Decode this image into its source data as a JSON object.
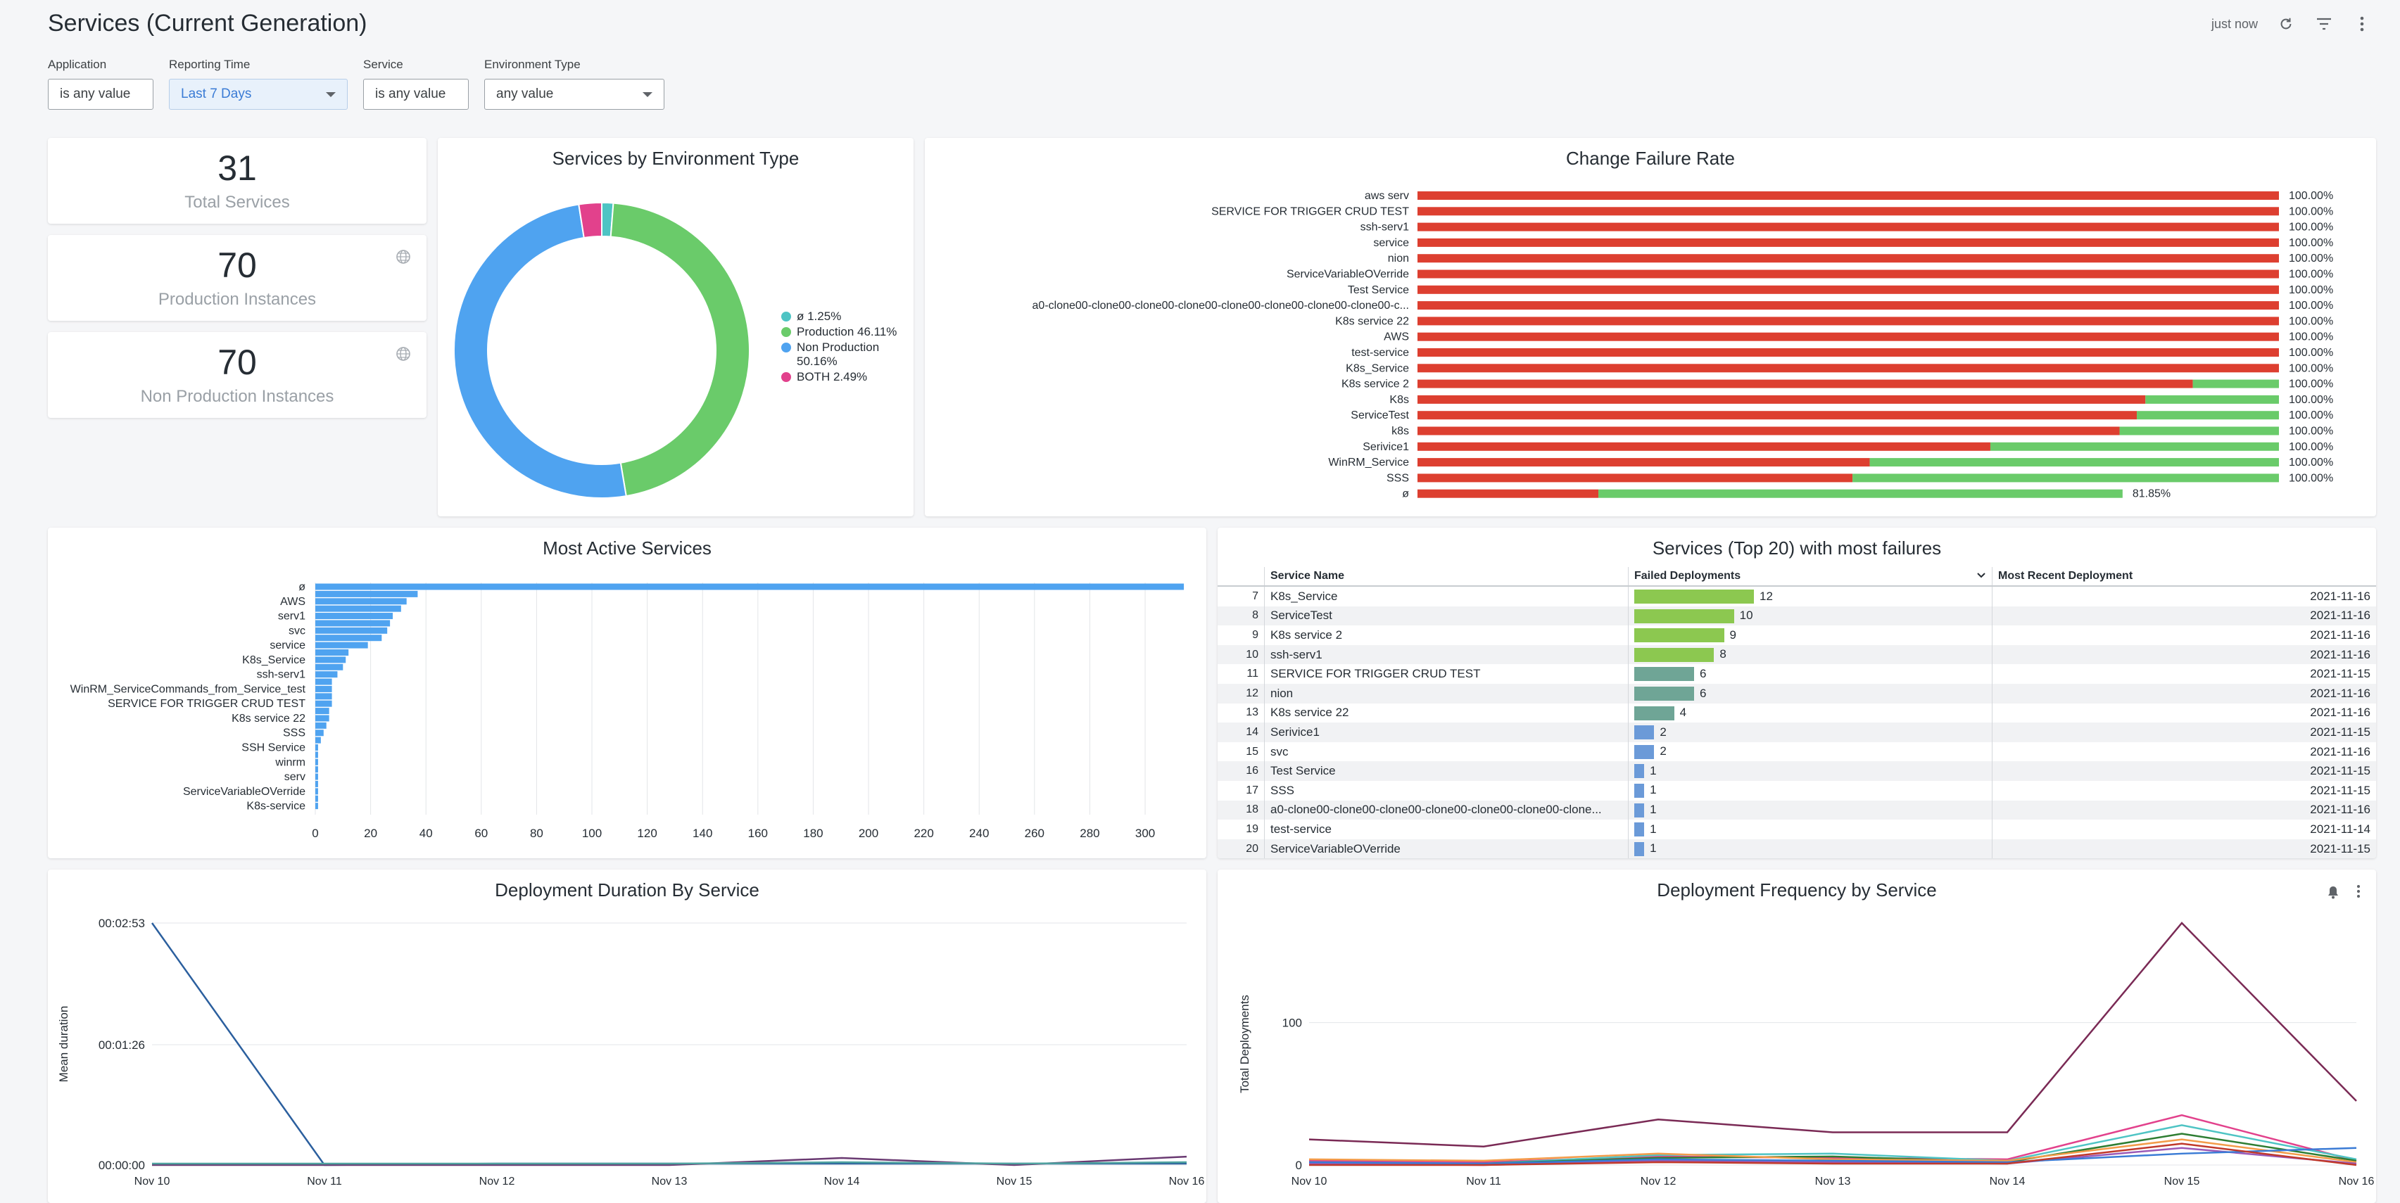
{
  "page": {
    "title": "Services (Current Generation)",
    "refresh_status": "just now"
  },
  "filters": [
    {
      "label": "Application",
      "value": "is any value"
    },
    {
      "label": "Reporting Time",
      "value": "Last 7 Days"
    },
    {
      "label": "Service",
      "value": "is any value"
    },
    {
      "label": "Environment Type",
      "value": "any value"
    }
  ],
  "kpis": [
    {
      "value": "31",
      "label": "Total Services"
    },
    {
      "value": "70",
      "label": "Production Instances"
    },
    {
      "value": "70",
      "label": "Non Production Instances"
    }
  ],
  "colors": {
    "green": "#6acb6a",
    "blue": "#4fa3f0",
    "teal": "#4ec4c4",
    "pink": "#e2418c",
    "red": "#dd3f30",
    "bar_blue": "#4fa3f0",
    "fail_green": "#8cc850",
    "fail_teal": "#6fa596",
    "fail_blue": "#6b9ad8"
  },
  "env_chart": {
    "title": "Services by Environment Type",
    "chart_data": {
      "type": "pie",
      "slices": [
        {
          "label": "ø 1.25%",
          "value": 1.25,
          "color": "#4ec4c4"
        },
        {
          "label": "Production 46.11%",
          "value": 46.11,
          "color": "#6acb6a"
        },
        {
          "label": "Non Production 50.16%",
          "value": 50.16,
          "color": "#4fa3f0"
        },
        {
          "label": "BOTH 2.49%",
          "value": 2.49,
          "color": "#e2418c"
        }
      ],
      "legend": "right"
    }
  },
  "cfr_chart": {
    "title": "Change Failure Rate",
    "chart_data": {
      "type": "bar",
      "orientation": "horizontal",
      "stacked": true,
      "categories": [
        "aws serv",
        "SERVICE FOR TRIGGER CRUD TEST",
        "ssh-serv1",
        "service",
        "nion",
        "ServiceVariableOVerride",
        "Test Service",
        "a0-clone00-clone00-clone00-clone00-clone00-clone00-clone00-clone00-c...",
        "K8s service 22",
        "AWS",
        "test-service",
        "K8s_Service",
        "K8s service 2",
        "K8s",
        "ServiceTest",
        "k8s",
        "Serivice1",
        "WinRM_Service",
        "SSS",
        "ø"
      ],
      "series": [
        {
          "values": [
            100,
            100,
            100,
            100,
            100,
            100,
            100,
            100,
            100,
            100,
            100,
            100,
            90,
            84.5,
            83.5,
            81.5,
            66.5,
            52.5,
            50.5,
            21
          ]
        },
        {
          "values": [
            0,
            0,
            0,
            0,
            0,
            0,
            0,
            0,
            0,
            0,
            0,
            0,
            10,
            15.5,
            16.5,
            18.5,
            33.5,
            47.5,
            49.5,
            60.85
          ]
        }
      ],
      "totals": [
        "100.00%",
        "100.00%",
        "100.00%",
        "100.00%",
        "100.00%",
        "100.00%",
        "100.00%",
        "100.00%",
        "100.00%",
        "100.00%",
        "100.00%",
        "100.00%",
        "100.00%",
        "100.00%",
        "100.00%",
        "100.00%",
        "100.00%",
        "100.00%",
        "100.00%",
        "81.85%"
      ],
      "xlim": [
        0,
        100
      ]
    }
  },
  "active_chart": {
    "title": "Most Active Services",
    "chart_data": {
      "type": "bar",
      "orientation": "horizontal",
      "categories": [
        "ø",
        "",
        "AWS",
        "",
        "serv1",
        "",
        "svc",
        "",
        "service",
        "",
        "K8s_Service",
        "",
        "ssh-serv1",
        "",
        "WinRM_ServiceCommands_from_Service_test",
        "",
        "SERVICE FOR TRIGGER CRUD TEST",
        "",
        "K8s service 22",
        "",
        "SSS",
        "",
        "SSH Service",
        "",
        "winrm",
        "",
        "serv",
        "",
        "ServiceVariableOVerride",
        "",
        "K8s-service"
      ],
      "values": [
        314,
        37,
        33,
        31,
        28,
        27,
        26,
        24,
        19,
        12,
        11,
        10,
        8,
        6,
        6,
        6,
        6,
        5,
        5,
        4,
        3,
        2,
        1,
        1,
        1,
        1,
        1,
        1,
        1,
        1,
        1
      ],
      "xticks": [
        "0",
        "20",
        "40",
        "60",
        "80",
        "100",
        "120",
        "140",
        "160",
        "180",
        "200",
        "220",
        "240",
        "260",
        "280",
        "300"
      ],
      "xlim": [
        0,
        315
      ]
    }
  },
  "failures_table": {
    "title": "Services (Top 20) with most failures",
    "columns": [
      "Service Name",
      "Failed Deployments",
      "Most Recent Deployment"
    ],
    "rows": [
      {
        "n": "7",
        "name": "K8s_Service",
        "failed": "12",
        "date": "2021-11-16"
      },
      {
        "n": "8",
        "name": "ServiceTest",
        "failed": "10",
        "date": "2021-11-16"
      },
      {
        "n": "9",
        "name": "K8s service 2",
        "failed": "9",
        "date": "2021-11-16"
      },
      {
        "n": "10",
        "name": "ssh-serv1",
        "failed": "8",
        "date": "2021-11-16"
      },
      {
        "n": "11",
        "name": "SERVICE FOR TRIGGER CRUD TEST",
        "failed": "6",
        "date": "2021-11-15"
      },
      {
        "n": "12",
        "name": "nion",
        "failed": "6",
        "date": "2021-11-16"
      },
      {
        "n": "13",
        "name": "K8s service 22",
        "failed": "4",
        "date": "2021-11-16"
      },
      {
        "n": "14",
        "name": "Serivice1",
        "failed": "2",
        "date": "2021-11-15"
      },
      {
        "n": "15",
        "name": "svc",
        "failed": "2",
        "date": "2021-11-16"
      },
      {
        "n": "16",
        "name": "Test Service",
        "failed": "1",
        "date": "2021-11-15"
      },
      {
        "n": "17",
        "name": "SSS",
        "failed": "1",
        "date": "2021-11-15"
      },
      {
        "n": "18",
        "name": "a0-clone00-clone00-clone00-clone00-clone00-clone00-clone...",
        "failed": "1",
        "date": "2021-11-16"
      },
      {
        "n": "19",
        "name": "test-service",
        "failed": "1",
        "date": "2021-11-14"
      },
      {
        "n": "20",
        "name": "ServiceVariableOVerride",
        "failed": "1",
        "date": "2021-11-15"
      }
    ]
  },
  "duration_chart": {
    "title": "Deployment Duration By Service",
    "chart_data": {
      "type": "line",
      "ylabel": "Mean duration",
      "yticks": [
        "00:00:00",
        "00:01:26",
        "00:02:53"
      ],
      "ylim": [
        0,
        173
      ],
      "x": [
        "Nov 10",
        "Nov 11",
        "Nov 12",
        "Nov 13",
        "Nov 14",
        "Nov 15",
        "Nov 16"
      ],
      "series": [
        {
          "color": "#2b5f9e",
          "values": [
            173,
            0,
            1,
            1,
            1,
            1,
            1
          ]
        },
        {
          "color": "#6a3a72",
          "values": [
            0,
            0,
            0,
            0,
            5,
            0,
            6
          ]
        },
        {
          "color": "#4fa3a0",
          "values": [
            1,
            1,
            1,
            1,
            2,
            1,
            2
          ]
        }
      ]
    }
  },
  "frequency_chart": {
    "title": "Deployment Frequency by Service",
    "chart_data": {
      "type": "line",
      "ylabel": "Total Deployments",
      "yticks": [
        "0",
        "100"
      ],
      "ylim": [
        0,
        170
      ],
      "x": [
        "Nov 10",
        "Nov 11",
        "Nov 12",
        "Nov 13",
        "Nov 14",
        "Nov 15",
        "Nov 16"
      ],
      "series": [
        {
          "color": "#7a2a55",
          "values": [
            18,
            13,
            32,
            23,
            23,
            170,
            45
          ]
        },
        {
          "color": "#e2418c",
          "values": [
            3,
            2,
            6,
            5,
            4,
            35,
            3
          ]
        },
        {
          "color": "#4ec4c4",
          "values": [
            2,
            1,
            7,
            8,
            3,
            28,
            4
          ]
        },
        {
          "color": "#2e7d32",
          "values": [
            1,
            1,
            5,
            6,
            2,
            22,
            3
          ]
        },
        {
          "color": "#f39c4a",
          "values": [
            4,
            3,
            8,
            4,
            3,
            18,
            2
          ]
        },
        {
          "color": "#9b59b6",
          "values": [
            1,
            0,
            3,
            2,
            1,
            12,
            1
          ]
        },
        {
          "color": "#3a7bd5",
          "values": [
            2,
            1,
            4,
            3,
            2,
            8,
            12
          ]
        },
        {
          "color": "#c0392b",
          "values": [
            0,
            0,
            2,
            1,
            1,
            15,
            0
          ]
        }
      ]
    }
  }
}
